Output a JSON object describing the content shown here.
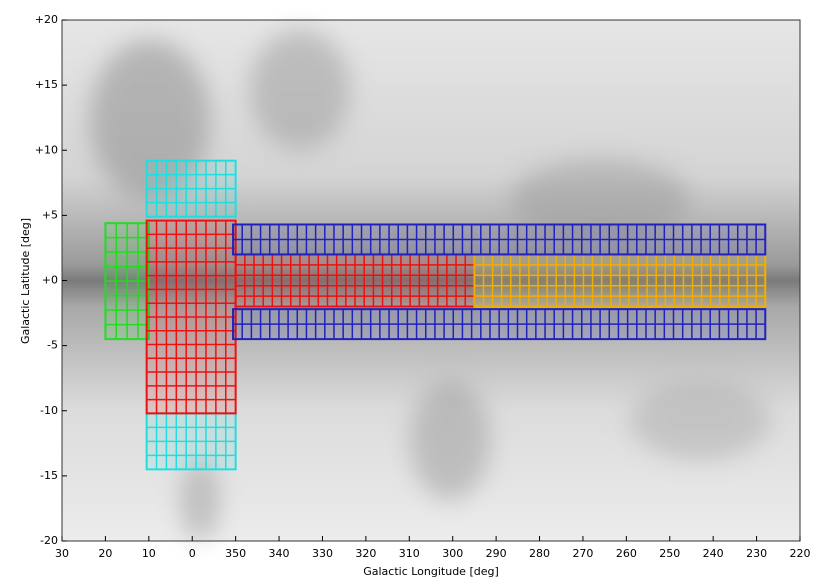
{
  "chart_data": {
    "type": "survey-footprint",
    "x_label": "Galactic Longitude [deg]",
    "y_label": "Galactic Latitude [deg]",
    "xlim": [
      30,
      -140
    ],
    "ylim": [
      -20,
      20
    ],
    "xticks": [
      30,
      20,
      10,
      0,
      {
        "value": -10,
        "label": "350"
      },
      {
        "value": -20,
        "label": "340"
      },
      {
        "value": -30,
        "label": "330"
      },
      {
        "value": -40,
        "label": "320"
      },
      {
        "value": -50,
        "label": "310"
      },
      {
        "value": -60,
        "label": "300"
      },
      {
        "value": -70,
        "label": "290"
      },
      {
        "value": -80,
        "label": "280"
      },
      {
        "value": -90,
        "label": "270"
      },
      {
        "value": -100,
        "label": "260"
      },
      {
        "value": -110,
        "label": "250"
      },
      {
        "value": -120,
        "label": "240"
      },
      {
        "value": -130,
        "label": "230"
      },
      {
        "value": -140,
        "label": "220"
      }
    ],
    "yticks": [
      {
        "value": 20,
        "label": "+20"
      },
      {
        "value": 15,
        "label": "+15"
      },
      {
        "value": 10,
        "label": "+10"
      },
      {
        "value": 5,
        "label": "+5"
      },
      {
        "value": 0,
        "label": "+0"
      },
      -5,
      -10,
      -15,
      -20
    ],
    "regions": [
      {
        "color": "#22dd22",
        "xrange": [
          20,
          10
        ],
        "yrange": [
          4.4,
          -4.5
        ],
        "cols": 4,
        "rows": 8
      },
      {
        "color": "#22dddd",
        "xrange": [
          10.5,
          -10
        ],
        "yrange": [
          9.2,
          4.9
        ],
        "cols": 9,
        "rows": 4
      },
      {
        "color": "#22dddd",
        "xrange": [
          10.5,
          -10
        ],
        "yrange": [
          -10.2,
          -14.5
        ],
        "cols": 9,
        "rows": 4
      },
      {
        "color": "#ee1111",
        "xrange": [
          10.5,
          -10
        ],
        "yrange": [
          4.6,
          -10.2
        ],
        "cols": 9,
        "rows": 14
      },
      {
        "color": "#ee1111",
        "xrange": [
          -10,
          -65
        ],
        "yrange": [
          2,
          -2
        ],
        "cols": 26,
        "rows": 5
      },
      {
        "color": "#f0b000",
        "xrange": [
          -65,
          -132
        ],
        "yrange": [
          2,
          -2
        ],
        "cols": 32,
        "rows": 5
      },
      {
        "color": "#2222bb",
        "xrange": [
          -9.4,
          -132
        ],
        "yrange": [
          4.3,
          2
        ],
        "cols": 58,
        "rows": 2
      },
      {
        "color": "#2222bb",
        "xrange": [
          -9.4,
          -132
        ],
        "yrange": [
          -2.2,
          -4.5
        ],
        "cols": 58,
        "rows": 2
      }
    ]
  }
}
